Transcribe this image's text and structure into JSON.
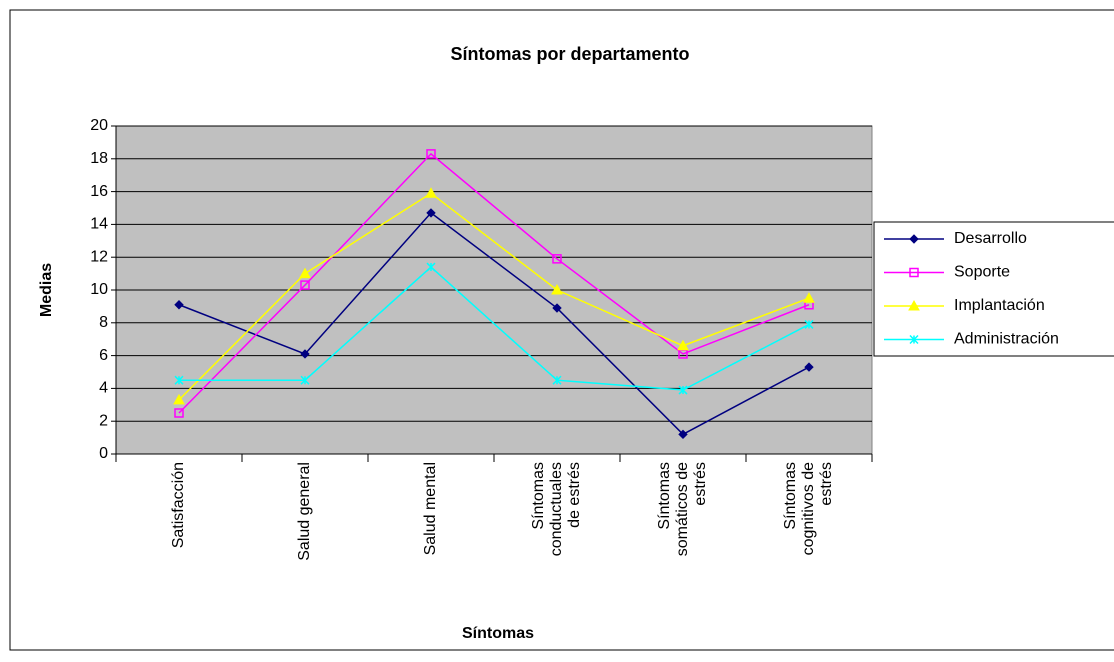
{
  "chart_data": {
    "type": "line",
    "title": "Síntomas por departamento",
    "x_label": "Síntomas",
    "y_label": "Medias",
    "categories": [
      "Satisfacción",
      "Salud general",
      "Salud mental",
      "Síntomas conductuales de estrés",
      "Síntomas somáticos de estrés",
      "Síntomas cognitivos de estrés"
    ],
    "series": [
      {
        "name": "Desarrollo",
        "color": "#000080",
        "marker": "diamond",
        "values": [
          9.1,
          6.1,
          14.7,
          8.9,
          1.2,
          5.3
        ]
      },
      {
        "name": "Soporte",
        "color": "#ff00ff",
        "marker": "square",
        "values": [
          2.5,
          10.3,
          18.3,
          11.9,
          6.1,
          9.1
        ]
      },
      {
        "name": "Implantación",
        "color": "#ffff00",
        "marker": "triangle",
        "values": [
          3.3,
          11.0,
          15.9,
          10.0,
          6.6,
          9.5
        ]
      },
      {
        "name": "Administración",
        "color": "#00ffff",
        "marker": "x",
        "values": [
          4.5,
          4.5,
          11.4,
          4.5,
          3.9,
          7.9
        ]
      }
    ],
    "ylim": [
      0,
      20
    ],
    "yticks": [
      0,
      2,
      4,
      6,
      8,
      10,
      12,
      14,
      16,
      18,
      20
    ],
    "grid": true,
    "legend": "right"
  }
}
